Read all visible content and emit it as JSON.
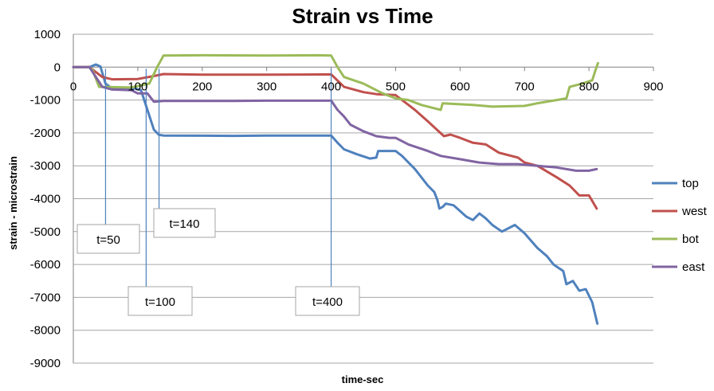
{
  "chart_data": {
    "type": "line",
    "title": "Strain vs Time",
    "xlabel": "time-sec",
    "ylabel": "strain - microstrain",
    "xlim": [
      0,
      900
    ],
    "ylim": [
      -9000,
      1000
    ],
    "xticks": [
      0,
      100,
      200,
      300,
      400,
      500,
      600,
      700,
      800,
      900
    ],
    "yticks": [
      1000,
      0,
      -1000,
      -2000,
      -3000,
      -4000,
      -5000,
      -6000,
      -7000,
      -8000,
      -9000
    ],
    "grid": "horizontal",
    "legend": "right",
    "series": [
      {
        "name": "top",
        "color": "#4f81bd",
        "points": [
          [
            0,
            0
          ],
          [
            25,
            0
          ],
          [
            35,
            80
          ],
          [
            42,
            20
          ],
          [
            50,
            -500
          ],
          [
            60,
            -650
          ],
          [
            95,
            -650
          ],
          [
            105,
            -700
          ],
          [
            115,
            -1300
          ],
          [
            125,
            -1900
          ],
          [
            133,
            -2060
          ],
          [
            140,
            -2080
          ],
          [
            250,
            -2090
          ],
          [
            300,
            -2080
          ],
          [
            400,
            -2080
          ],
          [
            410,
            -2300
          ],
          [
            420,
            -2500
          ],
          [
            440,
            -2650
          ],
          [
            460,
            -2780
          ],
          [
            470,
            -2750
          ],
          [
            473,
            -2550
          ],
          [
            500,
            -2550
          ],
          [
            510,
            -2700
          ],
          [
            530,
            -3100
          ],
          [
            550,
            -3600
          ],
          [
            560,
            -3800
          ],
          [
            565,
            -4050
          ],
          [
            568,
            -4300
          ],
          [
            573,
            -4250
          ],
          [
            578,
            -4150
          ],
          [
            590,
            -4200
          ],
          [
            610,
            -4550
          ],
          [
            620,
            -4650
          ],
          [
            630,
            -4450
          ],
          [
            640,
            -4600
          ],
          [
            650,
            -4800
          ],
          [
            665,
            -5000
          ],
          [
            685,
            -4800
          ],
          [
            700,
            -5050
          ],
          [
            720,
            -5500
          ],
          [
            735,
            -5750
          ],
          [
            745,
            -6000
          ],
          [
            760,
            -6200
          ],
          [
            765,
            -6600
          ],
          [
            775,
            -6500
          ],
          [
            785,
            -6800
          ],
          [
            795,
            -6750
          ],
          [
            805,
            -7150
          ],
          [
            813,
            -7800
          ]
        ]
      },
      {
        "name": "west",
        "color": "#c0504d",
        "points": [
          [
            0,
            0
          ],
          [
            25,
            0
          ],
          [
            45,
            -300
          ],
          [
            60,
            -370
          ],
          [
            100,
            -360
          ],
          [
            125,
            -270
          ],
          [
            140,
            -210
          ],
          [
            200,
            -230
          ],
          [
            300,
            -230
          ],
          [
            400,
            -220
          ],
          [
            420,
            -600
          ],
          [
            450,
            -760
          ],
          [
            470,
            -820
          ],
          [
            500,
            -850
          ],
          [
            510,
            -1000
          ],
          [
            530,
            -1300
          ],
          [
            550,
            -1650
          ],
          [
            575,
            -2100
          ],
          [
            585,
            -2050
          ],
          [
            600,
            -2150
          ],
          [
            620,
            -2300
          ],
          [
            640,
            -2350
          ],
          [
            660,
            -2600
          ],
          [
            690,
            -2750
          ],
          [
            700,
            -2900
          ],
          [
            720,
            -3000
          ],
          [
            750,
            -3350
          ],
          [
            770,
            -3600
          ],
          [
            785,
            -3900
          ],
          [
            800,
            -3900
          ],
          [
            812,
            -4300
          ]
        ]
      },
      {
        "name": "bot",
        "color": "#9bbb59",
        "points": [
          [
            0,
            0
          ],
          [
            25,
            0
          ],
          [
            30,
            -100
          ],
          [
            40,
            -600
          ],
          [
            90,
            -620
          ],
          [
            118,
            -500
          ],
          [
            130,
            0
          ],
          [
            140,
            350
          ],
          [
            200,
            360
          ],
          [
            300,
            350
          ],
          [
            380,
            360
          ],
          [
            400,
            350
          ],
          [
            410,
            0
          ],
          [
            420,
            -300
          ],
          [
            450,
            -500
          ],
          [
            480,
            -800
          ],
          [
            500,
            -950
          ],
          [
            520,
            -1000
          ],
          [
            540,
            -1150
          ],
          [
            560,
            -1250
          ],
          [
            570,
            -1300
          ],
          [
            573,
            -1100
          ],
          [
            620,
            -1150
          ],
          [
            650,
            -1200
          ],
          [
            700,
            -1180
          ],
          [
            720,
            -1100
          ],
          [
            750,
            -1000
          ],
          [
            765,
            -950
          ],
          [
            770,
            -600
          ],
          [
            790,
            -500
          ],
          [
            805,
            -400
          ],
          [
            810,
            -100
          ],
          [
            814,
            120
          ]
        ]
      },
      {
        "name": "east",
        "color": "#8064a2",
        "points": [
          [
            0,
            0
          ],
          [
            25,
            0
          ],
          [
            45,
            -600
          ],
          [
            60,
            -680
          ],
          [
            90,
            -700
          ],
          [
            100,
            -800
          ],
          [
            115,
            -800
          ],
          [
            125,
            -1050
          ],
          [
            140,
            -1030
          ],
          [
            250,
            -1030
          ],
          [
            300,
            -1020
          ],
          [
            400,
            -1020
          ],
          [
            410,
            -1300
          ],
          [
            420,
            -1500
          ],
          [
            430,
            -1750
          ],
          [
            450,
            -1950
          ],
          [
            470,
            -2100
          ],
          [
            490,
            -2150
          ],
          [
            500,
            -2150
          ],
          [
            520,
            -2350
          ],
          [
            550,
            -2550
          ],
          [
            570,
            -2700
          ],
          [
            600,
            -2800
          ],
          [
            630,
            -2900
          ],
          [
            660,
            -2950
          ],
          [
            690,
            -2950
          ],
          [
            720,
            -3000
          ],
          [
            750,
            -3050
          ],
          [
            780,
            -3150
          ],
          [
            800,
            -3150
          ],
          [
            812,
            -3100
          ]
        ]
      }
    ],
    "annotations": [
      {
        "label": "t=50",
        "x": 50
      },
      {
        "label": "t=100",
        "x": 113
      },
      {
        "label": "t=140",
        "x": 133
      },
      {
        "label": "t=400",
        "x": 400
      }
    ]
  }
}
